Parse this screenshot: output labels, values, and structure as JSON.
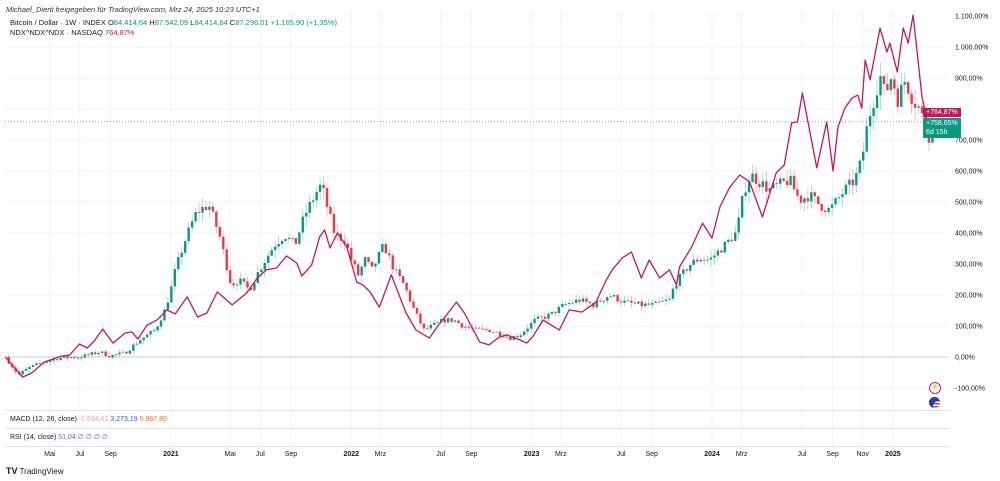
{
  "share_line": "Michael_Dierti freigegeben für TradingView.com, Mrz 24, 2025 10:23 UTC+1",
  "legend": {
    "main_symbol": "Bitcoin / Dollar · 1W · INDEX",
    "o_label": "O",
    "o": "84.414,64",
    "h_label": "H",
    "h": "87.542,09",
    "l_label": "L",
    "l": "84.414,64",
    "c_label": "C",
    "c": "87.296,01",
    "change": "+1.165,90 (+1,35%)",
    "compare_symbol": "NDX^NDX^NDX · NASDAQ",
    "compare_value": "764,87%"
  },
  "badges": {
    "compare": "+764,87%",
    "main": "+758,65%",
    "countdown": "6d 15h"
  },
  "indicators": {
    "macd_label": "MACD (12, 26, close)",
    "macd_vals": [
      "-2.694,61",
      "3.273,19",
      "5.967,80"
    ],
    "rsi_label": "RSI (14, close)",
    "rsi_val": "51,04",
    "rsi_rest": "∅ ∅ ∅ ∅"
  },
  "brand": "TradingView",
  "colors": {
    "up": "#089981",
    "down": "#f23645",
    "compare": "#c2185b",
    "macd": "#f7a1ac",
    "signal": "#2962ff",
    "hist": "#ff6d00",
    "rsi": "#7e57c2"
  },
  "chart_data": {
    "type": "candlestick+line",
    "y_scale": "percent",
    "ylim": [
      -100,
      1100
    ],
    "y_ticks": [
      "1.100,00%",
      "1.000,00%",
      "900,00%",
      "800,00%",
      "700,00%",
      "600,00%",
      "500,00%",
      "400,00%",
      "300,00%",
      "200,00%",
      "100,00%",
      "0,00%",
      "-100,00%"
    ],
    "y_tick_values": [
      1100,
      1000,
      900,
      800,
      700,
      600,
      500,
      400,
      300,
      200,
      100,
      0,
      -100
    ],
    "x_ticks": [
      {
        "label": "Mai",
        "date": "2020-05-01"
      },
      {
        "label": "Jul",
        "date": "2020-07-01"
      },
      {
        "label": "Sep",
        "date": "2020-09-01"
      },
      {
        "label": "2021",
        "date": "2021-01-01"
      },
      {
        "label": "Mai",
        "date": "2021-05-01"
      },
      {
        "label": "Jul",
        "date": "2021-07-01"
      },
      {
        "label": "Sep",
        "date": "2021-09-01"
      },
      {
        "label": "2022",
        "date": "2022-01-01"
      },
      {
        "label": "Mrz",
        "date": "2022-03-01"
      },
      {
        "label": "Jul",
        "date": "2022-07-01"
      },
      {
        "label": "Sep",
        "date": "2022-09-01"
      },
      {
        "label": "2023",
        "date": "2023-01-01"
      },
      {
        "label": "Mrz",
        "date": "2023-03-01"
      },
      {
        "label": "Jul",
        "date": "2023-07-01"
      },
      {
        "label": "Sep",
        "date": "2023-09-01"
      },
      {
        "label": "2024",
        "date": "2024-01-01"
      },
      {
        "label": "Mrz",
        "date": "2024-03-01"
      },
      {
        "label": "Jul",
        "date": "2024-07-01"
      },
      {
        "label": "Sep",
        "date": "2024-09-01"
      },
      {
        "label": "Nov",
        "date": "2024-11-01"
      },
      {
        "label": "2025",
        "date": "2025-01-01"
      }
    ],
    "grid": true,
    "series": [
      {
        "name": "Bitcoin / Dollar",
        "kind": "candles",
        "interval": "1W",
        "points": [
          [
            "2020-02-01",
            0
          ],
          [
            "2020-02-28",
            -58
          ],
          [
            "2020-03-20",
            -35
          ],
          [
            "2020-04-20",
            -16
          ],
          [
            "2020-05-20",
            -3
          ],
          [
            "2020-06-30",
            0
          ],
          [
            "2020-08-10",
            16
          ],
          [
            "2020-08-30",
            3
          ],
          [
            "2020-09-30",
            13
          ],
          [
            "2020-10-30",
            55
          ],
          [
            "2020-11-30",
            87
          ],
          [
            "2020-12-20",
            152
          ],
          [
            "2021-01-01",
            216
          ],
          [
            "2021-01-10",
            281
          ],
          [
            "2021-01-30",
            377
          ],
          [
            "2021-02-19",
            458
          ],
          [
            "2021-02-28",
            474
          ],
          [
            "2021-03-19",
            490
          ],
          [
            "2021-04-09",
            394
          ],
          [
            "2021-05-03",
            232
          ],
          [
            "2021-05-19",
            248
          ],
          [
            "2021-06-09",
            216
          ],
          [
            "2021-06-29",
            281
          ],
          [
            "2021-07-29",
            361
          ],
          [
            "2021-08-19",
            394
          ],
          [
            "2021-09-09",
            361
          ],
          [
            "2021-09-29",
            458
          ],
          [
            "2021-10-25",
            539
          ],
          [
            "2021-11-02",
            555
          ],
          [
            "2021-11-15",
            474
          ],
          [
            "2021-11-29",
            394
          ],
          [
            "2021-12-19",
            377
          ],
          [
            "2022-01-01",
            313
          ],
          [
            "2022-01-15",
            265
          ],
          [
            "2022-01-29",
            313
          ],
          [
            "2022-02-12",
            281
          ],
          [
            "2022-03-08",
            361
          ],
          [
            "2022-03-29",
            281
          ],
          [
            "2022-04-18",
            232
          ],
          [
            "2022-05-08",
            152
          ],
          [
            "2022-05-28",
            87
          ],
          [
            "2022-06-18",
            103
          ],
          [
            "2022-07-08",
            119
          ],
          [
            "2022-07-28",
            119
          ],
          [
            "2022-08-12",
            103
          ],
          [
            "2022-09-08",
            87
          ],
          [
            "2022-10-07",
            87
          ],
          [
            "2022-11-07",
            71
          ],
          [
            "2022-11-17",
            61
          ],
          [
            "2022-12-08",
            71
          ],
          [
            "2023-01-08",
            119
          ],
          [
            "2023-02-07",
            135
          ],
          [
            "2023-03-08",
            168
          ],
          [
            "2023-04-07",
            184
          ],
          [
            "2023-05-07",
            168
          ],
          [
            "2023-06-07",
            200
          ],
          [
            "2023-07-07",
            177
          ],
          [
            "2023-08-07",
            168
          ],
          [
            "2023-09-06",
            168
          ],
          [
            "2023-10-07",
            184
          ],
          [
            "2023-10-17",
            232
          ],
          [
            "2023-11-16",
            297
          ],
          [
            "2023-12-07",
            319
          ],
          [
            "2023-12-27",
            313
          ],
          [
            "2024-01-27",
            361
          ],
          [
            "2024-02-20",
            403
          ],
          [
            "2024-03-06",
            539
          ],
          [
            "2024-03-20",
            587
          ],
          [
            "2024-04-06",
            565
          ],
          [
            "2024-04-26",
            539
          ],
          [
            "2024-05-16",
            555
          ],
          [
            "2024-06-06",
            571
          ],
          [
            "2024-06-26",
            506
          ],
          [
            "2024-07-16",
            523
          ],
          [
            "2024-08-06",
            490
          ],
          [
            "2024-08-26",
            474
          ],
          [
            "2024-09-26",
            539
          ],
          [
            "2024-10-16",
            571
          ],
          [
            "2024-10-30",
            635
          ],
          [
            "2024-11-12",
            765
          ],
          [
            "2024-11-26",
            845
          ],
          [
            "2024-12-06",
            910
          ],
          [
            "2024-12-16",
            845
          ],
          [
            "2024-12-30",
            910
          ],
          [
            "2025-01-10",
            829
          ],
          [
            "2025-01-26",
            894
          ],
          [
            "2025-02-11",
            829
          ],
          [
            "2025-02-26",
            797
          ],
          [
            "2025-03-12",
            700
          ],
          [
            "2025-03-24",
            758.65
          ]
        ]
      },
      {
        "name": "NDX^NDX^NDX",
        "kind": "line",
        "points": [
          [
            "2020-02-01",
            0
          ],
          [
            "2020-03-07",
            -65
          ],
          [
            "2020-03-25",
            -52
          ],
          [
            "2020-04-20",
            -16
          ],
          [
            "2020-05-24",
            3
          ],
          [
            "2020-06-10",
            6
          ],
          [
            "2020-06-30",
            42
          ],
          [
            "2020-07-16",
            29
          ],
          [
            "2020-07-30",
            52
          ],
          [
            "2020-08-16",
            90
          ],
          [
            "2020-09-06",
            45
          ],
          [
            "2020-09-30",
            77
          ],
          [
            "2020-10-14",
            81
          ],
          [
            "2020-10-26",
            58
          ],
          [
            "2020-11-14",
            103
          ],
          [
            "2020-12-04",
            119
          ],
          [
            "2020-12-24",
            152
          ],
          [
            "2021-01-10",
            139
          ],
          [
            "2021-02-03",
            194
          ],
          [
            "2021-02-24",
            129
          ],
          [
            "2021-03-15",
            142
          ],
          [
            "2021-04-05",
            210
          ],
          [
            "2021-05-05",
            168
          ],
          [
            "2021-06-03",
            206
          ],
          [
            "2021-06-25",
            255
          ],
          [
            "2021-07-13",
            281
          ],
          [
            "2021-08-03",
            287
          ],
          [
            "2021-08-23",
            326
          ],
          [
            "2021-09-13",
            303
          ],
          [
            "2021-09-23",
            261
          ],
          [
            "2021-10-13",
            297
          ],
          [
            "2021-10-29",
            387
          ],
          [
            "2021-11-08",
            410
          ],
          [
            "2021-11-19",
            352
          ],
          [
            "2021-12-04",
            400
          ],
          [
            "2021-12-23",
            355
          ],
          [
            "2022-01-12",
            242
          ],
          [
            "2022-01-25",
            232
          ],
          [
            "2022-02-08",
            210
          ],
          [
            "2022-02-27",
            161
          ],
          [
            "2022-03-23",
            265
          ],
          [
            "2022-04-22",
            142
          ],
          [
            "2022-05-12",
            87
          ],
          [
            "2022-06-08",
            61
          ],
          [
            "2022-06-24",
            97
          ],
          [
            "2022-08-02",
            177
          ],
          [
            "2022-08-18",
            142
          ],
          [
            "2022-09-18",
            48
          ],
          [
            "2022-10-07",
            39
          ],
          [
            "2022-10-28",
            65
          ],
          [
            "2022-11-12",
            71
          ],
          [
            "2022-12-08",
            55
          ],
          [
            "2022-12-22",
            45
          ],
          [
            "2023-01-03",
            65
          ],
          [
            "2023-01-24",
            119
          ],
          [
            "2023-02-26",
            87
          ],
          [
            "2023-03-18",
            152
          ],
          [
            "2023-04-13",
            145
          ],
          [
            "2023-05-11",
            177
          ],
          [
            "2023-06-01",
            248
          ],
          [
            "2023-06-13",
            281
          ],
          [
            "2023-07-03",
            319
          ],
          [
            "2023-07-22",
            339
          ],
          [
            "2023-08-11",
            255
          ],
          [
            "2023-08-27",
            313
          ],
          [
            "2023-09-17",
            255
          ],
          [
            "2023-10-07",
            281
          ],
          [
            "2023-10-21",
            232
          ],
          [
            "2023-10-27",
            290
          ],
          [
            "2023-11-21",
            355
          ],
          [
            "2023-12-13",
            432
          ],
          [
            "2024-01-01",
            384
          ],
          [
            "2024-01-17",
            484
          ],
          [
            "2024-02-06",
            548
          ],
          [
            "2024-02-26",
            587
          ],
          [
            "2024-03-17",
            565
          ],
          [
            "2024-04-12",
            452
          ],
          [
            "2024-05-10",
            594
          ],
          [
            "2024-05-26",
            619
          ],
          [
            "2024-06-10",
            755
          ],
          [
            "2024-06-22",
            758
          ],
          [
            "2024-07-02",
            852
          ],
          [
            "2024-07-31",
            610
          ],
          [
            "2024-08-20",
            758
          ],
          [
            "2024-09-02",
            600
          ],
          [
            "2024-09-12",
            742
          ],
          [
            "2024-09-26",
            803
          ],
          [
            "2024-10-10",
            835
          ],
          [
            "2024-10-22",
            845
          ],
          [
            "2024-10-30",
            803
          ],
          [
            "2024-11-06",
            958
          ],
          [
            "2024-11-16",
            894
          ],
          [
            "2024-12-06",
            1061
          ],
          [
            "2024-12-20",
            984
          ],
          [
            "2024-12-26",
            1013
          ],
          [
            "2025-01-10",
            919
          ],
          [
            "2025-01-22",
            1061
          ],
          [
            "2025-02-01",
            1013
          ],
          [
            "2025-02-11",
            1103
          ],
          [
            "2025-03-01",
            839
          ],
          [
            "2025-03-12",
            758
          ],
          [
            "2025-03-22",
            764.87
          ]
        ]
      }
    ]
  }
}
